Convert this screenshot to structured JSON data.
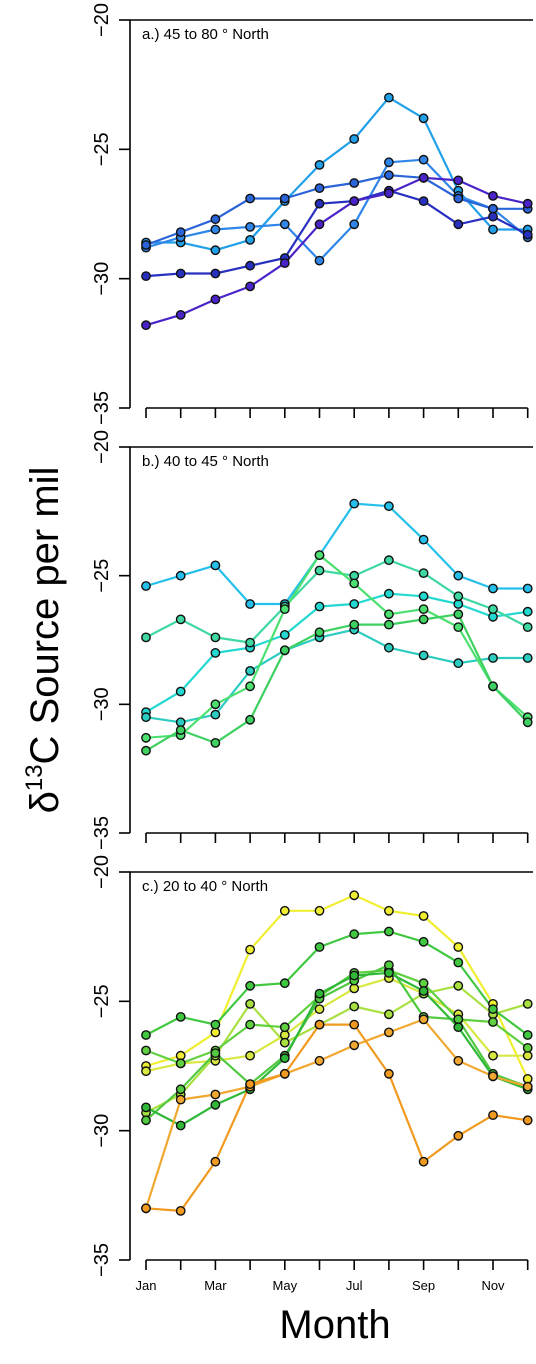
{
  "chart_data": {
    "type": "line",
    "ylabel": {
      "delta": "δ",
      "sup": "13",
      "rest": "C Source per mil"
    },
    "xlabel": "Month",
    "x": [
      1,
      2,
      3,
      4,
      5,
      6,
      7,
      8,
      9,
      10,
      11,
      12
    ],
    "x_tick_labels": [
      "Jan",
      "",
      "Mar",
      "",
      "May",
      "",
      "Jul",
      "",
      "Sep",
      "",
      "Nov",
      ""
    ],
    "panels": [
      {
        "title": "a.) 45 to 80 ° North",
        "ylim": [
          -35,
          -20
        ],
        "yticks": [
          -20,
          -25,
          -30,
          -35
        ],
        "series": [
          {
            "color": "#1fa0e8",
            "values": [
              -28.6,
              -28.6,
              -28.9,
              -28.5,
              -27.0,
              -25.6,
              -24.6,
              -23.0,
              -23.8,
              -26.6,
              -28.1,
              -28.1
            ]
          },
          {
            "color": "#2f86e8",
            "values": [
              -28.8,
              -28.4,
              -28.1,
              -28.0,
              -27.9,
              -29.3,
              -27.9,
              -25.5,
              -25.4,
              -26.8,
              -27.3,
              -28.4
            ]
          },
          {
            "color": "#2a64d8",
            "values": [
              -28.7,
              -28.2,
              -27.7,
              -26.9,
              -26.9,
              -26.5,
              -26.3,
              -26.0,
              -26.1,
              -26.9,
              -27.3,
              -27.3
            ]
          },
          {
            "color": "#2830c0",
            "values": [
              -29.9,
              -29.8,
              -29.8,
              -29.5,
              -29.2,
              -27.1,
              -27.0,
              -26.6,
              -27.0,
              -27.9,
              -27.6,
              -28.3
            ]
          },
          {
            "color": "#4a24c8",
            "values": [
              -31.8,
              -31.4,
              -30.8,
              -30.3,
              -29.4,
              -27.9,
              -27.0,
              -26.7,
              -26.1,
              -26.2,
              -26.8,
              -27.1
            ]
          }
        ]
      },
      {
        "title": "b.) 40 to 45 ° North",
        "ylim": [
          -35,
          -20
        ],
        "yticks": [
          -20,
          -25,
          -30,
          -35
        ],
        "series": [
          {
            "color": "#25c0ea",
            "values": [
              -25.4,
              -25.0,
              -24.6,
              -26.1,
              -26.1,
              -24.2,
              -22.2,
              -22.3,
              -23.6,
              -25.0,
              -25.5,
              -25.5
            ]
          },
          {
            "color": "#22d8d0",
            "values": [
              -30.3,
              -29.5,
              -28.0,
              -27.8,
              -27.3,
              -26.2,
              -26.1,
              -25.7,
              -25.8,
              -26.1,
              -26.6,
              -26.4
            ]
          },
          {
            "color": "#2cccc0",
            "values": [
              -30.5,
              -30.7,
              -30.4,
              -28.7,
              -27.9,
              -27.4,
              -27.1,
              -27.8,
              -28.1,
              -28.4,
              -28.2,
              -28.2
            ]
          },
          {
            "color": "#3ed8a0",
            "values": [
              -27.4,
              -26.7,
              -27.4,
              -27.6,
              -26.2,
              -24.8,
              -25.0,
              -24.4,
              -24.9,
              -25.8,
              -26.3,
              -27.0
            ]
          },
          {
            "color": "#4ce070",
            "values": [
              -31.3,
              -31.2,
              -30.0,
              -29.3,
              -26.3,
              -24.2,
              -25.3,
              -26.5,
              -26.3,
              -27.0,
              -29.3,
              -30.5
            ]
          },
          {
            "color": "#3ed060",
            "values": [
              -31.8,
              -31.0,
              -31.5,
              -30.6,
              -27.9,
              -27.2,
              -26.9,
              -26.9,
              -26.7,
              -26.5,
              -29.3,
              -30.7
            ]
          }
        ]
      },
      {
        "title": "c.) 20 to 40 ° North",
        "ylim": [
          -35,
          -20
        ],
        "yticks": [
          -20,
          -25,
          -30,
          -35
        ],
        "series": [
          {
            "color": "#f0ee30",
            "values": [
              -27.5,
              -27.1,
              -26.2,
              -23.0,
              -21.5,
              -21.5,
              -20.9,
              -21.5,
              -21.7,
              -22.9,
              -25.1,
              -28.0
            ]
          },
          {
            "color": "#d8e840",
            "values": [
              -27.7,
              -27.4,
              -27.3,
              -27.1,
              -26.3,
              -25.3,
              -24.5,
              -24.1,
              -24.7,
              -25.5,
              -27.1,
              -27.1
            ]
          },
          {
            "color": "#a8e040",
            "values": [
              -29.3,
              -28.6,
              -27.1,
              -25.1,
              -26.6,
              -25.9,
              -25.2,
              -25.5,
              -24.7,
              -24.4,
              -25.5,
              -25.1
            ]
          },
          {
            "color": "#40c840",
            "values": [
              -26.3,
              -25.6,
              -25.9,
              -24.4,
              -24.3,
              -22.9,
              -22.4,
              -22.3,
              -22.7,
              -23.5,
              -25.3,
              -26.3
            ]
          },
          {
            "color": "#60d040",
            "values": [
              -26.9,
              -27.4,
              -26.9,
              -25.9,
              -26.0,
              -24.8,
              -23.9,
              -23.8,
              -24.3,
              -25.7,
              -25.8,
              -26.8
            ]
          },
          {
            "color": "#50c840",
            "values": [
              -29.6,
              -28.4,
              -27.0,
              -28.2,
              -27.1,
              -24.9,
              -24.2,
              -23.6,
              -25.6,
              -25.7,
              -27.8,
              -28.3
            ]
          },
          {
            "color": "#30b838",
            "values": [
              -29.1,
              -29.8,
              -29.0,
              -28.4,
              -27.2,
              -24.7,
              -24.0,
              -23.9,
              -24.6,
              -26.0,
              -27.9,
              -28.4
            ]
          },
          {
            "color": "#f0a830",
            "values": [
              -33.0,
              -28.8,
              -28.6,
              -28.3,
              -27.8,
              -27.3,
              -26.7,
              -26.2,
              -25.7,
              -27.3,
              -27.9,
              -28.3
            ]
          },
          {
            "color": "#f09a20",
            "values": [
              -33.0,
              -33.1,
              -31.2,
              -28.2,
              -27.8,
              -25.9,
              -25.9,
              -27.8,
              -31.2,
              -30.2,
              -29.4,
              -29.6
            ]
          }
        ]
      }
    ]
  }
}
